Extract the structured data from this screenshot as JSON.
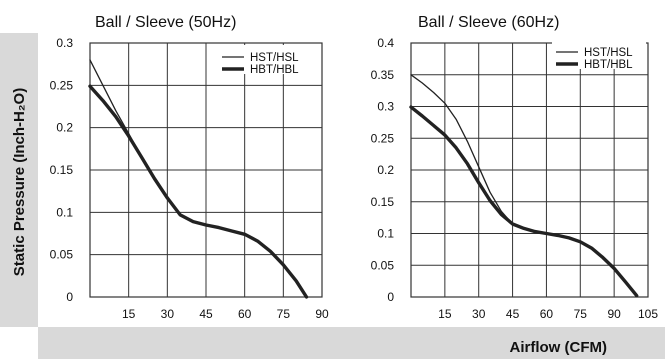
{
  "axis_titles": {
    "y": "Static Pressure (Inch-H₂O)",
    "x": "Airflow (CFM)"
  },
  "colors": {
    "band": "#d9d9d9",
    "line": "#222222",
    "grid": "#333333"
  },
  "chart_data": [
    {
      "type": "line",
      "title": "Ball / Sleeve (50Hz)",
      "xlabel": "Airflow (CFM)",
      "ylabel": "Static Pressure (Inch-H₂O)",
      "xlim": [
        0,
        90
      ],
      "ylim": [
        0,
        0.3
      ],
      "xticks": [
        15,
        30,
        45,
        60,
        75,
        90
      ],
      "yticks": [
        0,
        0.05,
        0.1,
        0.15,
        0.2,
        0.25,
        0.3
      ],
      "x_tick_labels": [
        "15",
        "30",
        "45",
        "60",
        "75",
        "90"
      ],
      "y_tick_labels": [
        "0",
        "0.05",
        "0.1",
        "0.15",
        "0.2",
        "0.25",
        "0.3"
      ],
      "grid": true,
      "legend": "top-right",
      "series": [
        {
          "name": "HST/HSL",
          "style": "thin",
          "points": [
            [
              0,
              0.28
            ],
            [
              5,
              0.25
            ],
            [
              10,
              0.22
            ],
            [
              15,
              0.193
            ],
            [
              20,
              0.165
            ],
            [
              25,
              0.14
            ],
            [
              30,
              0.117
            ],
            [
              35,
              0.097
            ],
            [
              40,
              0.089
            ],
            [
              45,
              0.085
            ],
            [
              50,
              0.082
            ],
            [
              55,
              0.078
            ],
            [
              60,
              0.074
            ],
            [
              65,
              0.066
            ],
            [
              70,
              0.054
            ],
            [
              75,
              0.038
            ],
            [
              80,
              0.019
            ],
            [
              84,
              0.0
            ]
          ]
        },
        {
          "name": "HBT/HBL",
          "style": "thick",
          "points": [
            [
              0,
              0.249
            ],
            [
              5,
              0.232
            ],
            [
              10,
              0.213
            ],
            [
              15,
              0.19
            ],
            [
              20,
              0.165
            ],
            [
              25,
              0.14
            ],
            [
              30,
              0.117
            ],
            [
              35,
              0.097
            ],
            [
              40,
              0.089
            ],
            [
              45,
              0.085
            ],
            [
              50,
              0.082
            ],
            [
              55,
              0.078
            ],
            [
              60,
              0.074
            ],
            [
              65,
              0.066
            ],
            [
              70,
              0.054
            ],
            [
              75,
              0.038
            ],
            [
              80,
              0.019
            ],
            [
              84,
              0.0
            ]
          ]
        }
      ]
    },
    {
      "type": "line",
      "title": "Ball / Sleeve (60Hz)",
      "xlabel": "Airflow (CFM)",
      "ylabel": "Static Pressure (Inch-H₂O)",
      "xlim": [
        0,
        105
      ],
      "ylim": [
        0,
        0.4
      ],
      "xticks": [
        15,
        30,
        45,
        60,
        75,
        90,
        105
      ],
      "yticks": [
        0,
        0.05,
        0.1,
        0.15,
        0.2,
        0.25,
        0.3,
        0.35,
        0.4
      ],
      "x_tick_labels": [
        "15",
        "30",
        "45",
        "60",
        "75",
        "90",
        "105"
      ],
      "y_tick_labels": [
        "0",
        "0.05",
        "0.1",
        "0.15",
        "0.2",
        "0.25",
        "0.3",
        "0.35",
        "0.4"
      ],
      "grid": true,
      "legend": "top-right",
      "series": [
        {
          "name": "HST/HSL",
          "style": "thin",
          "points": [
            [
              0,
              0.35
            ],
            [
              5,
              0.337
            ],
            [
              10,
              0.322
            ],
            [
              15,
              0.305
            ],
            [
              20,
              0.28
            ],
            [
              25,
              0.245
            ],
            [
              30,
              0.205
            ],
            [
              35,
              0.165
            ],
            [
              40,
              0.135
            ],
            [
              45,
              0.115
            ],
            [
              50,
              0.108
            ],
            [
              55,
              0.103
            ],
            [
              60,
              0.1
            ],
            [
              65,
              0.097
            ],
            [
              70,
              0.093
            ],
            [
              75,
              0.087
            ],
            [
              80,
              0.077
            ],
            [
              85,
              0.062
            ],
            [
              90,
              0.045
            ],
            [
              95,
              0.024
            ],
            [
              100,
              0.002
            ]
          ]
        },
        {
          "name": "HBT/HBL",
          "style": "thick",
          "points": [
            [
              0,
              0.299
            ],
            [
              5,
              0.285
            ],
            [
              10,
              0.27
            ],
            [
              15,
              0.255
            ],
            [
              20,
              0.235
            ],
            [
              25,
              0.21
            ],
            [
              30,
              0.18
            ],
            [
              35,
              0.152
            ],
            [
              40,
              0.13
            ],
            [
              45,
              0.115
            ],
            [
              50,
              0.108
            ],
            [
              55,
              0.103
            ],
            [
              60,
              0.1
            ],
            [
              65,
              0.097
            ],
            [
              70,
              0.093
            ],
            [
              75,
              0.087
            ],
            [
              80,
              0.077
            ],
            [
              85,
              0.062
            ],
            [
              90,
              0.045
            ],
            [
              95,
              0.024
            ],
            [
              100,
              0.002
            ]
          ]
        }
      ]
    }
  ]
}
